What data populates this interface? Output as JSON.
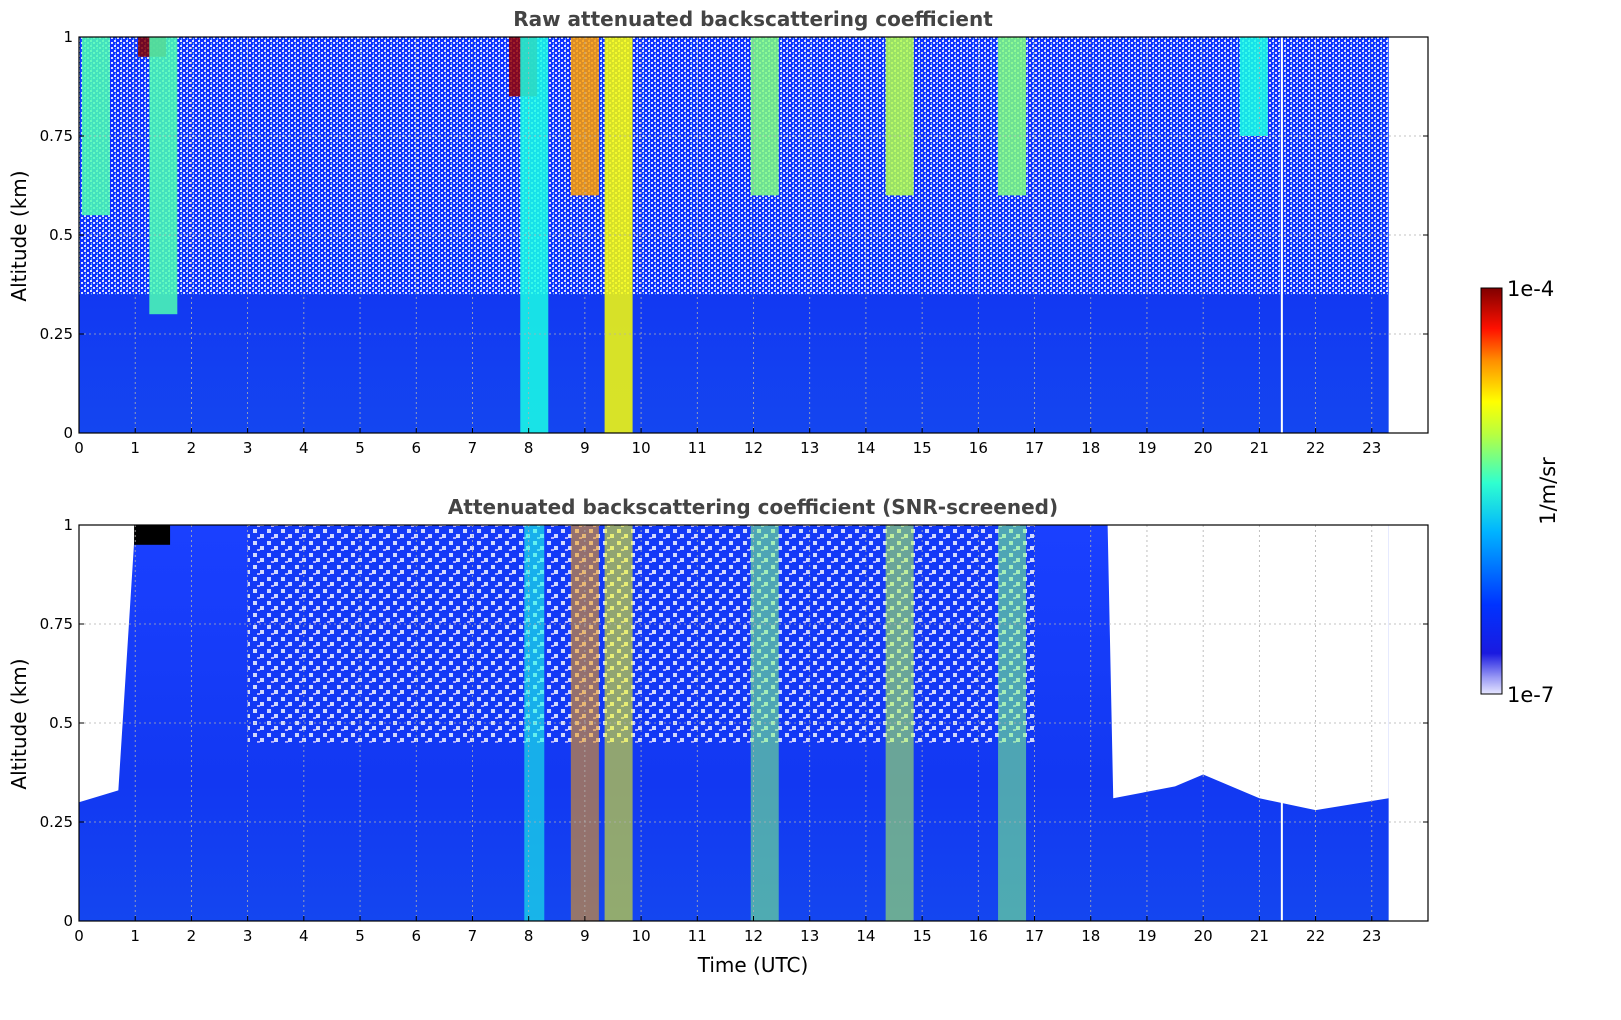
{
  "chart_data": [
    {
      "type": "heatmap",
      "title": "Raw attenuated backscattering coefficient",
      "xlabel": "",
      "ylabel": "Altitude (km)",
      "xlim": [
        0,
        24
      ],
      "ylim": [
        0,
        1
      ],
      "x_ticks": [
        "0",
        "1",
        "2",
        "3",
        "4",
        "5",
        "6",
        "7",
        "8",
        "9",
        "10",
        "11",
        "12",
        "13",
        "14",
        "15",
        "16",
        "17",
        "18",
        "19",
        "20",
        "21",
        "22",
        "23"
      ],
      "y_ticks": [
        "0",
        "0.25",
        "0.5",
        "0.75",
        "1"
      ],
      "grid": true,
      "data_end_time": 23.3,
      "features": [
        {
          "time": 0.3,
          "from_alt": 0.55,
          "to_alt": 1.0,
          "level": 0.45
        },
        {
          "time": 1.3,
          "from_alt": 0.95,
          "to_alt": 1.0,
          "level": 1.0
        },
        {
          "time": 1.5,
          "from_alt": 0.3,
          "to_alt": 1.0,
          "level": 0.45
        },
        {
          "time": 7.9,
          "from_alt": 0.85,
          "to_alt": 1.0,
          "level": 0.98
        },
        {
          "time": 8.1,
          "from_alt": 0.0,
          "to_alt": 1.0,
          "level": 0.4
        },
        {
          "time": 9.0,
          "from_alt": 0.6,
          "to_alt": 1.0,
          "level": 0.72
        },
        {
          "time": 9.6,
          "from_alt": 0.0,
          "to_alt": 1.0,
          "level": 0.62
        },
        {
          "time": 12.2,
          "from_alt": 0.6,
          "to_alt": 1.0,
          "level": 0.5
        },
        {
          "time": 14.6,
          "from_alt": 0.6,
          "to_alt": 1.0,
          "level": 0.55
        },
        {
          "time": 16.6,
          "from_alt": 0.6,
          "to_alt": 1.0,
          "level": 0.5
        },
        {
          "time": 20.9,
          "from_alt": 0.75,
          "to_alt": 1.0,
          "level": 0.4
        }
      ]
    },
    {
      "type": "heatmap",
      "title": "Attenuated backscattering coefficient (SNR-screened)",
      "xlabel": "Time (UTC)",
      "ylabel": "Altitude (km)",
      "xlim": [
        0,
        24
      ],
      "ylim": [
        0,
        1
      ],
      "x_ticks": [
        "0",
        "1",
        "2",
        "3",
        "4",
        "5",
        "6",
        "7",
        "8",
        "9",
        "10",
        "11",
        "12",
        "13",
        "14",
        "15",
        "16",
        "17",
        "18",
        "19",
        "20",
        "21",
        "22",
        "23"
      ],
      "y_ticks": [
        "0",
        "0.25",
        "0.5",
        "0.75",
        "1"
      ],
      "grid": true,
      "data_end_time": 23.3,
      "screened_top_altitude": [
        {
          "time": 0.0,
          "alt": 0.3
        },
        {
          "time": 0.7,
          "alt": 0.33
        },
        {
          "time": 1.0,
          "alt": 1.0
        },
        {
          "time": 18.3,
          "alt": 1.0
        },
        {
          "time": 18.4,
          "alt": 0.31
        },
        {
          "time": 19.5,
          "alt": 0.34
        },
        {
          "time": 20.0,
          "alt": 0.37
        },
        {
          "time": 21.0,
          "alt": 0.31
        },
        {
          "time": 22.0,
          "alt": 0.28
        },
        {
          "time": 23.3,
          "alt": 0.31
        }
      ]
    }
  ],
  "colorbar": {
    "label": "1/m/sr",
    "max_label": "1e-4",
    "min_label": "1e-7",
    "colormap": "jet",
    "colors": [
      "#e6e6ff",
      "#00008b",
      "#0000ff",
      "#00bfff",
      "#40e0d0",
      "#adff2f",
      "#ffff00",
      "#ff8c00",
      "#ff0000",
      "#8b0000"
    ]
  }
}
